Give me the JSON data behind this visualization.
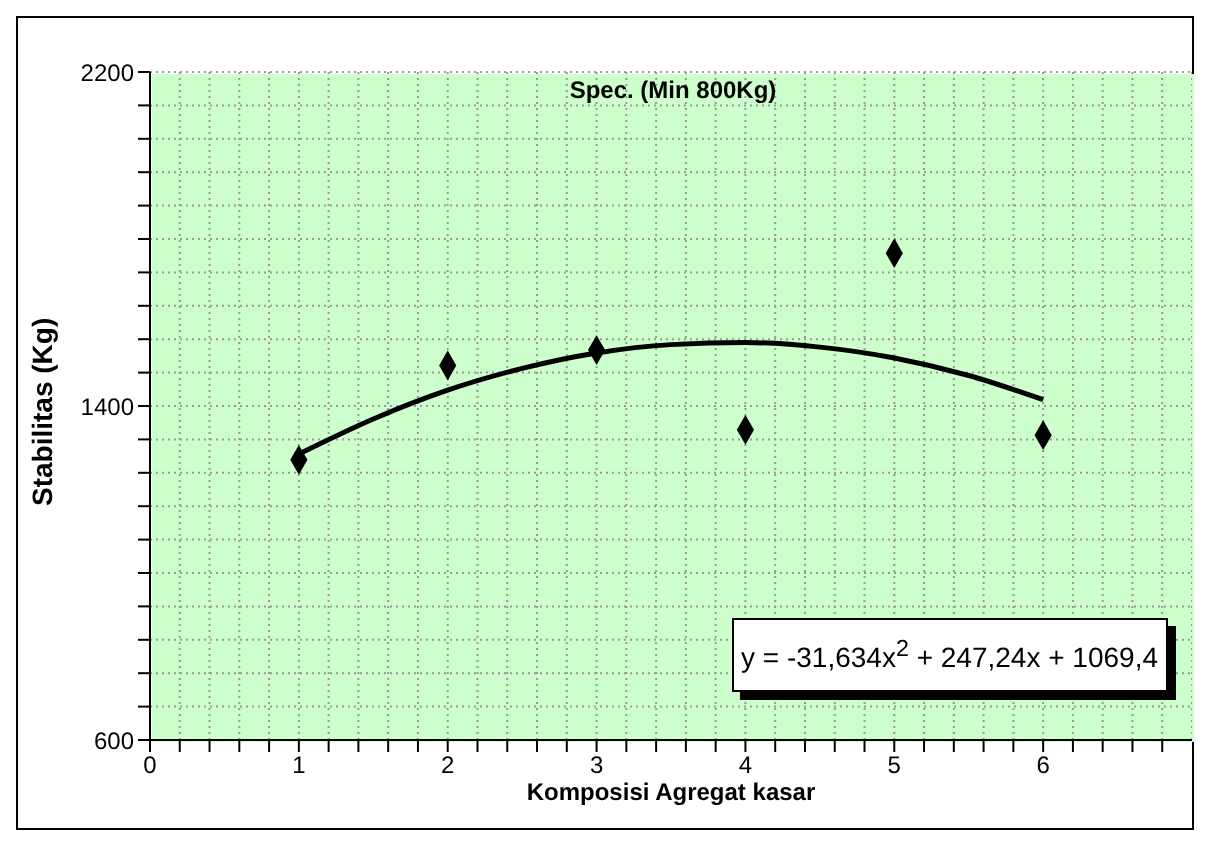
{
  "chart_data": {
    "type": "scatter",
    "title": "Spec. (Min 800Kg)",
    "xlabel": "Komposisi Agregat kasar",
    "ylabel": "Stabilitas (Kg)",
    "x": [
      1,
      2,
      3,
      4,
      5,
      6
    ],
    "series": [
      {
        "color": "#000000",
        "marker": "diamond",
        "values": [
          1271,
          1497,
          1534,
          1343,
          1766,
          1330
        ]
      },
      {
        "type": "line",
        "color": "#000000",
        "marker": "none",
        "x": [
          1,
          1.5,
          2,
          2.5,
          3,
          3.5,
          4,
          4.5,
          5,
          5.5,
          6
        ],
        "values": [
          1285,
          1369,
          1438,
          1490,
          1527,
          1547,
          1552,
          1541,
          1515,
          1473,
          1415
        ]
      }
    ],
    "annotations": [
      "y = -31,634x$^{2}$ + 247,24x + 1069,4"
    ],
    "xlim": [
      0,
      7
    ],
    "xticks": [
      0,
      {
        "value": 0.2,
        "label": null
      },
      {
        "value": 0.4,
        "label": null
      },
      {
        "value": 0.6,
        "label": null
      },
      {
        "value": 0.8,
        "label": null
      },
      1,
      {
        "value": 1.2,
        "label": null
      },
      {
        "value": 1.4,
        "label": null
      },
      {
        "value": 1.6,
        "label": null
      },
      {
        "value": 1.8,
        "label": null
      },
      2,
      {
        "value": 2.2,
        "label": null
      },
      {
        "value": 2.4,
        "label": null
      },
      {
        "value": 2.6,
        "label": null
      },
      {
        "value": 2.8,
        "label": null
      },
      3,
      {
        "value": 3.2,
        "label": null
      },
      {
        "value": 3.4,
        "label": null
      },
      {
        "value": 3.6,
        "label": null
      },
      {
        "value": 3.8,
        "label": null
      },
      4,
      {
        "value": 4.2,
        "label": null
      },
      {
        "value": 4.4,
        "label": null
      },
      {
        "value": 4.6,
        "label": null
      },
      {
        "value": 4.8,
        "label": null
      },
      5,
      {
        "value": 5.2,
        "label": null
      },
      {
        "value": 5.4,
        "label": null
      },
      {
        "value": 5.6,
        "label": null
      },
      {
        "value": 5.8,
        "label": null
      },
      6,
      {
        "value": 6.2,
        "label": null
      },
      {
        "value": 6.4,
        "label": null
      },
      {
        "value": 6.6,
        "label": null
      },
      {
        "value": 6.8,
        "label": null
      }
    ],
    "ylim": [
      600,
      2200
    ],
    "yticks": [
      600,
      {
        "value": 680,
        "label": null
      },
      {
        "value": 760,
        "label": null
      },
      {
        "value": 840,
        "label": null
      },
      {
        "value": 920,
        "label": null
      },
      {
        "value": 1000,
        "label": null
      },
      {
        "value": 1080,
        "label": null
      },
      {
        "value": 1160,
        "label": null
      },
      {
        "value": 1240,
        "label": null
      },
      {
        "value": 1320,
        "label": null
      },
      1400,
      {
        "value": 1480,
        "label": null
      },
      {
        "value": 1560,
        "label": null
      },
      {
        "value": 1640,
        "label": null
      },
      {
        "value": 1720,
        "label": null
      },
      {
        "value": 1800,
        "label": null
      },
      {
        "value": 1880,
        "label": null
      },
      {
        "value": 1960,
        "label": null
      },
      {
        "value": 2040,
        "label": null
      },
      {
        "value": 2120,
        "label": null
      },
      2200
    ],
    "grid": true
  }
}
